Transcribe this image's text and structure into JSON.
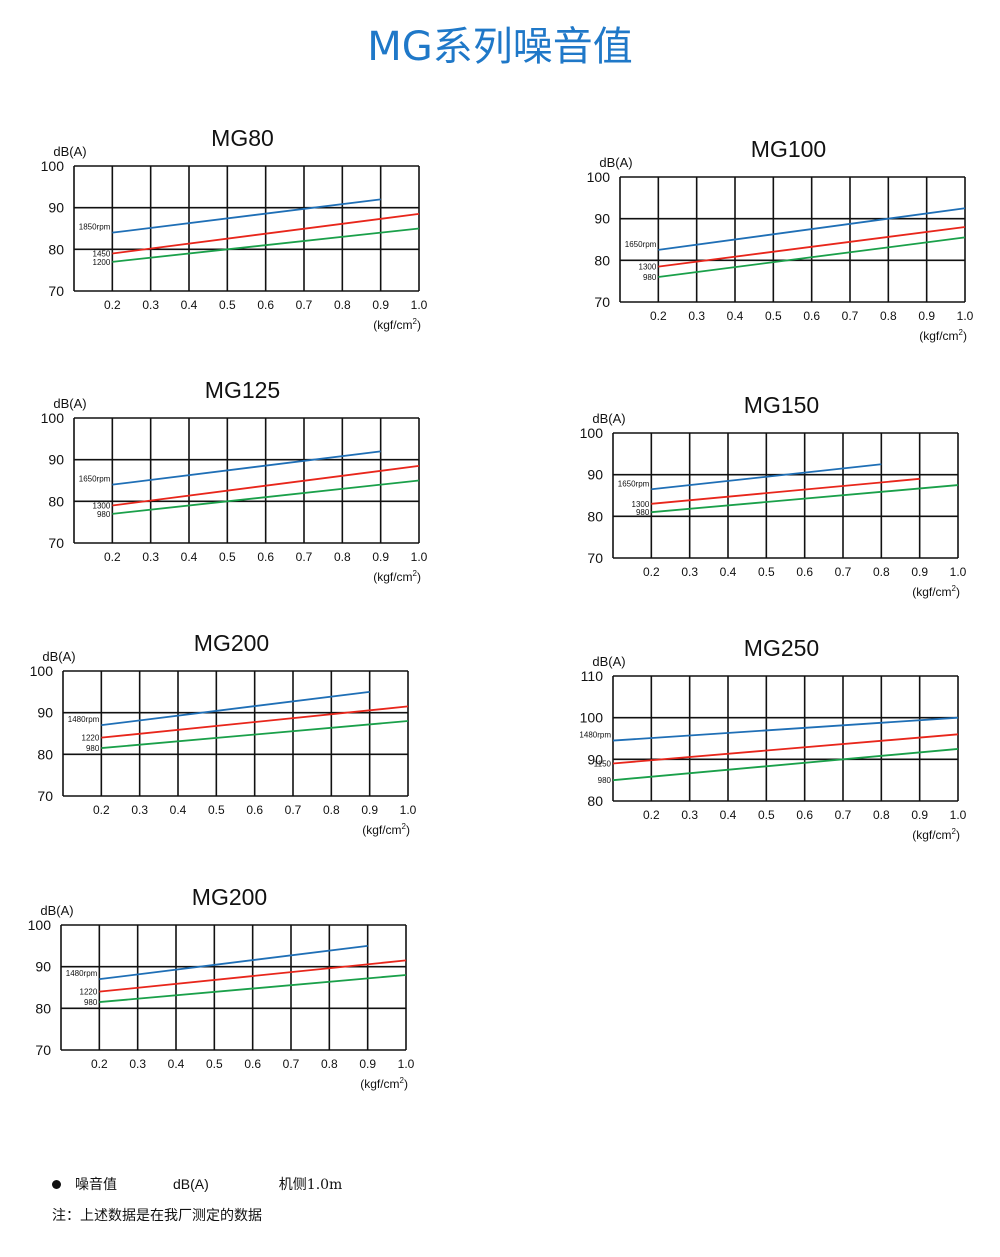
{
  "page": {
    "title": "MG系列噪音值"
  },
  "footer": {
    "legend_item": "噪音值",
    "legend_unit": "dB(A)",
    "legend_position": "机侧1.0m",
    "note": "注：上述数据是在我厂测定的数据"
  },
  "colors": {
    "title": "#1f78c8",
    "line_high": "#1f6fb6",
    "line_mid": "#e8261b",
    "line_low": "#1aa04a"
  },
  "chart_data": [
    {
      "type": "line",
      "title": "MG80",
      "ylabel": "dB(A)",
      "xlabel": "(kgf/cm²)",
      "xlim": [
        0.1,
        1.0
      ],
      "ylim": [
        70,
        100
      ],
      "xticks": [
        "0.2",
        "0.3",
        "0.4",
        "0.5",
        "0.6",
        "0.7",
        "0.8",
        "0.9",
        "1.0"
      ],
      "yticks": [
        "70",
        "80",
        "90",
        "100"
      ],
      "series": [
        {
          "name": "1850rpm",
          "color": "#1f6fb6",
          "x": [
            0.2,
            0.9
          ],
          "y": [
            84,
            92
          ]
        },
        {
          "name": "1450",
          "color": "#e8261b",
          "x": [
            0.2,
            1.0
          ],
          "y": [
            79,
            88.5
          ]
        },
        {
          "name": "1200",
          "color": "#1aa04a",
          "x": [
            0.2,
            1.0
          ],
          "y": [
            77,
            85
          ]
        }
      ]
    },
    {
      "type": "line",
      "title": "MG100",
      "ylabel": "dB(A)",
      "xlabel": "(kgf/cm²)",
      "xlim": [
        0.1,
        1.0
      ],
      "ylim": [
        70,
        100
      ],
      "xticks": [
        "0.2",
        "0.3",
        "0.4",
        "0.5",
        "0.6",
        "0.7",
        "0.8",
        "0.9",
        "1.0"
      ],
      "yticks": [
        "70",
        "80",
        "90",
        "100"
      ],
      "series": [
        {
          "name": "1650rpm",
          "color": "#1f6fb6",
          "x": [
            0.2,
            1.0
          ],
          "y": [
            82.5,
            92.5
          ]
        },
        {
          "name": "1300",
          "color": "#e8261b",
          "x": [
            0.2,
            1.0
          ],
          "y": [
            78.5,
            88
          ]
        },
        {
          "name": "980",
          "color": "#1aa04a",
          "x": [
            0.2,
            1.0
          ],
          "y": [
            76,
            85.5
          ]
        }
      ]
    },
    {
      "type": "line",
      "title": "MG125",
      "ylabel": "dB(A)",
      "xlabel": "(kgf/cm²)",
      "xlim": [
        0.1,
        1.0
      ],
      "ylim": [
        70,
        100
      ],
      "xticks": [
        "0.2",
        "0.3",
        "0.4",
        "0.5",
        "0.6",
        "0.7",
        "0.8",
        "0.9",
        "1.0"
      ],
      "yticks": [
        "70",
        "80",
        "90",
        "100"
      ],
      "series": [
        {
          "name": "1650rpm",
          "color": "#1f6fb6",
          "x": [
            0.2,
            0.9
          ],
          "y": [
            84,
            92
          ]
        },
        {
          "name": "1300",
          "color": "#e8261b",
          "x": [
            0.2,
            1.0
          ],
          "y": [
            79,
            88.5
          ]
        },
        {
          "name": "980",
          "color": "#1aa04a",
          "x": [
            0.2,
            1.0
          ],
          "y": [
            77,
            85
          ]
        }
      ]
    },
    {
      "type": "line",
      "title": "MG150",
      "ylabel": "dB(A)",
      "xlabel": "(kgf/cm²)",
      "xlim": [
        0.1,
        1.0
      ],
      "ylim": [
        70,
        100
      ],
      "xticks": [
        "0.2",
        "0.3",
        "0.4",
        "0.5",
        "0.6",
        "0.7",
        "0.8",
        "0.9",
        "1.0"
      ],
      "yticks": [
        "70",
        "80",
        "90",
        "100"
      ],
      "series": [
        {
          "name": "1650rpm",
          "color": "#1f6fb6",
          "x": [
            0.2,
            0.8
          ],
          "y": [
            86.5,
            92.5
          ]
        },
        {
          "name": "1300",
          "color": "#e8261b",
          "x": [
            0.2,
            0.9
          ],
          "y": [
            83,
            89
          ]
        },
        {
          "name": "980",
          "color": "#1aa04a",
          "x": [
            0.2,
            1.0
          ],
          "y": [
            81,
            87.5
          ]
        }
      ]
    },
    {
      "type": "line",
      "title": "MG200",
      "ylabel": "dB(A)",
      "xlabel": "(kgf/cm²)",
      "xlim": [
        0.1,
        1.0
      ],
      "ylim": [
        70,
        100
      ],
      "xticks": [
        "0.2",
        "0.3",
        "0.4",
        "0.5",
        "0.6",
        "0.7",
        "0.8",
        "0.9",
        "1.0"
      ],
      "yticks": [
        "70",
        "80",
        "90",
        "100"
      ],
      "series": [
        {
          "name": "1480rpm",
          "color": "#1f6fb6",
          "x": [
            0.2,
            0.9
          ],
          "y": [
            87,
            95
          ]
        },
        {
          "name": "1220",
          "color": "#e8261b",
          "x": [
            0.2,
            1.0
          ],
          "y": [
            84,
            91.5
          ]
        },
        {
          "name": "980",
          "color": "#1aa04a",
          "x": [
            0.2,
            1.0
          ],
          "y": [
            81.5,
            88
          ]
        }
      ]
    },
    {
      "type": "line",
      "title": "MG250",
      "ylabel": "dB(A)",
      "xlabel": "(kgf/cm²)",
      "xlim": [
        0.1,
        1.0
      ],
      "ylim": [
        80,
        110
      ],
      "xticks": [
        "0.2",
        "0.3",
        "0.4",
        "0.5",
        "0.6",
        "0.7",
        "0.8",
        "0.9",
        "1.0"
      ],
      "yticks": [
        "80",
        "90",
        "100",
        "110"
      ],
      "series": [
        {
          "name": "1480rpm",
          "color": "#1f6fb6",
          "x": [
            0.1,
            1.0
          ],
          "y": [
            94.5,
            100
          ]
        },
        {
          "name": "1150",
          "color": "#e8261b",
          "x": [
            0.1,
            1.0
          ],
          "y": [
            89,
            96
          ]
        },
        {
          "name": "980",
          "color": "#1aa04a",
          "x": [
            0.1,
            1.0
          ],
          "y": [
            85,
            92.5
          ]
        }
      ]
    },
    {
      "type": "line",
      "title": "MG200",
      "ylabel": "dB(A)",
      "xlabel": "(kgf/cm²)",
      "xlim": [
        0.1,
        1.0
      ],
      "ylim": [
        70,
        100
      ],
      "xticks": [
        "0.2",
        "0.3",
        "0.4",
        "0.5",
        "0.6",
        "0.7",
        "0.8",
        "0.9",
        "1.0"
      ],
      "yticks": [
        "70",
        "80",
        "90",
        "100"
      ],
      "series": [
        {
          "name": "1480rpm",
          "color": "#1f6fb6",
          "x": [
            0.2,
            0.9
          ],
          "y": [
            87,
            95
          ]
        },
        {
          "name": "1220",
          "color": "#e8261b",
          "x": [
            0.2,
            1.0
          ],
          "y": [
            84,
            91.5
          ]
        },
        {
          "name": "980",
          "color": "#1aa04a",
          "x": [
            0.2,
            1.0
          ],
          "y": [
            81.5,
            88
          ]
        }
      ]
    }
  ]
}
